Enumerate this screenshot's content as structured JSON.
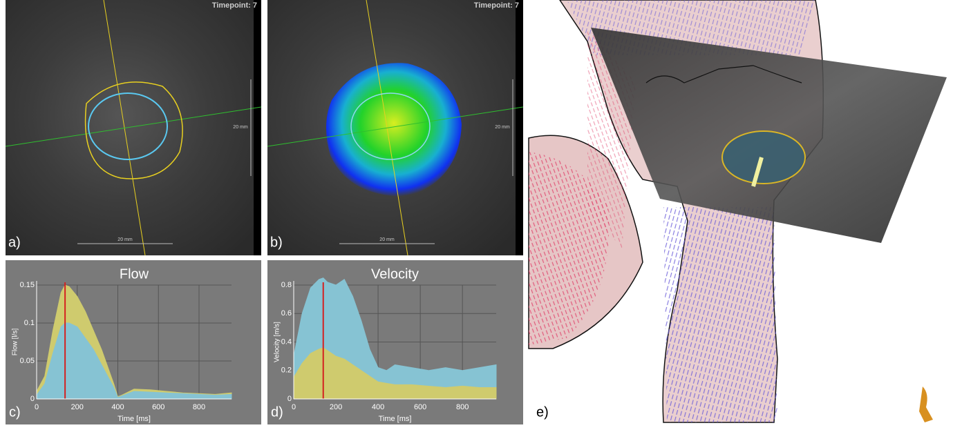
{
  "panels": [
    {
      "label": "a)",
      "timepoint": "Timepoint: 7",
      "scale_bottom": "20 mm",
      "scale_side": "20 mm"
    },
    {
      "label": "b)",
      "timepoint": "Timepoint: 7",
      "scale_bottom": "20 mm",
      "scale_side": "20 mm"
    },
    {
      "label": "e)"
    }
  ],
  "chart_data": [
    {
      "type": "area",
      "label": "c)",
      "title": "Flow",
      "x_label": "Time [ms]",
      "y_label": "Flow [l/s]",
      "x": [
        0,
        40,
        80,
        120,
        140,
        160,
        200,
        240,
        280,
        320,
        360,
        380,
        400,
        420,
        480,
        560,
        640,
        720,
        800,
        880,
        960
      ],
      "series": [
        {
          "color": "#cfcb6e",
          "values": [
            0.01,
            0.03,
            0.09,
            0.14,
            0.15,
            0.148,
            0.135,
            0.115,
            0.09,
            0.065,
            0.035,
            0.02,
            0.003,
            0.005,
            0.013,
            0.012,
            0.01,
            0.008,
            0.007,
            0.006,
            0.008
          ]
        },
        {
          "color": "#86c3d3",
          "values": [
            0.005,
            0.02,
            0.06,
            0.095,
            0.1,
            0.1,
            0.095,
            0.08,
            0.065,
            0.045,
            0.025,
            0.015,
            0.002,
            0.004,
            0.01,
            0.009,
            0.008,
            0.007,
            0.006,
            0.005,
            0.006
          ]
        }
      ],
      "marker_x": 140,
      "marker_color": "#d42020",
      "xlim": [
        0,
        960
      ],
      "xticks": [
        0,
        200,
        400,
        600,
        800
      ],
      "ylim": [
        0,
        0.15
      ],
      "yticks": [
        0,
        0.05,
        0.1,
        0.15
      ],
      "grid": true
    },
    {
      "type": "area",
      "label": "d)",
      "title": "Velocity",
      "x_label": "Time [ms]",
      "y_label": "Velocity [m/s]",
      "x": [
        0,
        40,
        80,
        120,
        140,
        160,
        200,
        240,
        280,
        320,
        360,
        400,
        440,
        480,
        560,
        640,
        720,
        800,
        880,
        960
      ],
      "series": [
        {
          "color": "#86c3d3",
          "values": [
            0.3,
            0.6,
            0.78,
            0.84,
            0.85,
            0.82,
            0.8,
            0.84,
            0.72,
            0.55,
            0.35,
            0.22,
            0.2,
            0.24,
            0.22,
            0.2,
            0.22,
            0.2,
            0.22,
            0.24
          ]
        },
        {
          "color": "#cfcb6e",
          "values": [
            0.15,
            0.25,
            0.32,
            0.35,
            0.36,
            0.34,
            0.3,
            0.28,
            0.24,
            0.2,
            0.16,
            0.12,
            0.11,
            0.1,
            0.1,
            0.09,
            0.08,
            0.09,
            0.08,
            0.08
          ]
        }
      ],
      "marker_x": 140,
      "marker_color": "#d42020",
      "xlim": [
        0,
        960
      ],
      "xticks": [
        0,
        200,
        400,
        600,
        800
      ],
      "ylim": [
        0,
        0.8
      ],
      "yticks": [
        0,
        0.2,
        0.4,
        0.6,
        0.8
      ],
      "grid": true
    }
  ]
}
